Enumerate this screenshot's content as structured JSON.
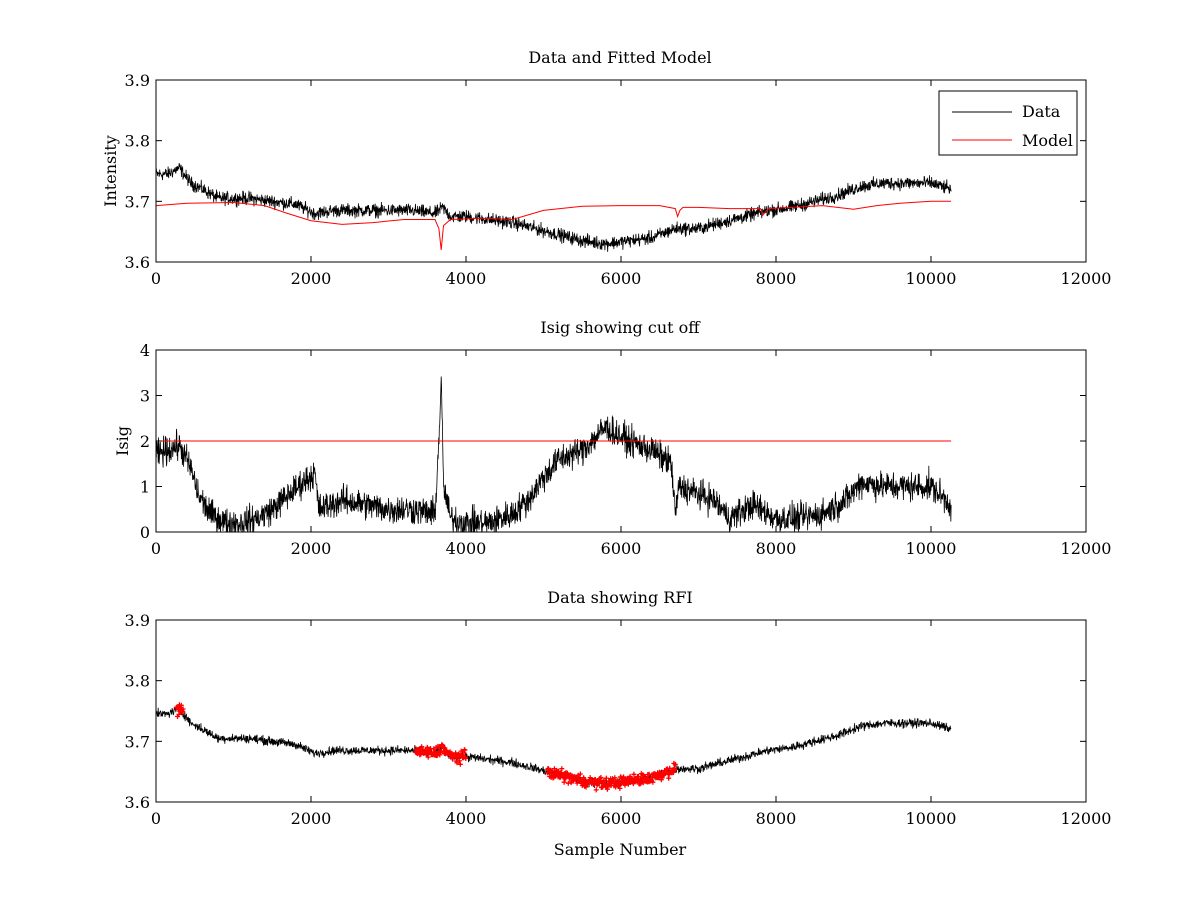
{
  "chart_data": [
    {
      "type": "line",
      "title": "Data and Fitted Model",
      "xlabel": "",
      "ylabel": "Intensity",
      "xlim": [
        0,
        12000
      ],
      "ylim": [
        3.6,
        3.9
      ],
      "xticks": [
        0,
        2000,
        4000,
        6000,
        8000,
        10000,
        12000
      ],
      "yticks": [
        3.6,
        3.7,
        3.8,
        3.9
      ],
      "xtick_labels": [
        "0",
        "2000",
        "4000",
        "6000",
        "8000",
        "10000",
        "12000"
      ],
      "ytick_labels": [
        "3.6",
        "3.7",
        "3.8",
        "3.9"
      ],
      "legend": "top-right",
      "series": [
        {
          "name": "Data",
          "color": "#000000",
          "style": "noisy-line",
          "noise": 0.012,
          "x": [
            0,
            150,
            300,
            450,
            600,
            800,
            1000,
            1200,
            1500,
            1800,
            2050,
            2300,
            2600,
            3000,
            3300,
            3600,
            3700,
            3800,
            4000,
            4300,
            4600,
            4900,
            5200,
            5500,
            5800,
            6100,
            6400,
            6700,
            7000,
            7300,
            7600,
            7900,
            8200,
            8500,
            8800,
            9100,
            9400,
            9700,
            10000,
            10260
          ],
          "y": [
            3.745,
            3.745,
            3.755,
            3.73,
            3.72,
            3.705,
            3.705,
            3.705,
            3.7,
            3.695,
            3.68,
            3.685,
            3.685,
            3.685,
            3.685,
            3.68,
            3.69,
            3.675,
            3.675,
            3.67,
            3.665,
            3.655,
            3.645,
            3.635,
            3.63,
            3.635,
            3.64,
            3.655,
            3.655,
            3.665,
            3.675,
            3.685,
            3.69,
            3.7,
            3.71,
            3.725,
            3.73,
            3.73,
            3.73,
            3.72
          ]
        },
        {
          "name": "Model",
          "color": "#ff0000",
          "style": "line",
          "x": [
            0,
            400,
            1000,
            1400,
            1700,
            2000,
            2400,
            2800,
            3200,
            3600,
            3650,
            3680,
            3710,
            3800,
            4200,
            4600,
            5000,
            5500,
            6000,
            6500,
            6700,
            6730,
            6760,
            6800,
            7000,
            7400,
            7700,
            7800,
            7830,
            7900,
            8200,
            8600,
            9000,
            9300,
            9600,
            10000,
            10260
          ],
          "y": [
            3.693,
            3.697,
            3.698,
            3.693,
            3.68,
            3.668,
            3.662,
            3.665,
            3.67,
            3.67,
            3.655,
            3.62,
            3.66,
            3.67,
            3.672,
            3.67,
            3.685,
            3.692,
            3.693,
            3.693,
            3.688,
            3.675,
            3.685,
            3.69,
            3.69,
            3.688,
            3.688,
            3.688,
            3.677,
            3.688,
            3.69,
            3.693,
            3.687,
            3.693,
            3.697,
            3.7,
            3.7
          ]
        }
      ]
    },
    {
      "type": "line",
      "title": "Isig showing cut off",
      "xlabel": "",
      "ylabel": "Isig",
      "xlim": [
        0,
        12000
      ],
      "ylim": [
        0,
        4
      ],
      "xticks": [
        0,
        2000,
        4000,
        6000,
        8000,
        10000,
        12000
      ],
      "yticks": [
        0,
        1,
        2,
        3,
        4
      ],
      "xtick_labels": [
        "0",
        "2000",
        "4000",
        "6000",
        "8000",
        "10000",
        "12000"
      ],
      "ytick_labels": [
        "0",
        "1",
        "2",
        "3",
        "4"
      ],
      "series": [
        {
          "color": "#000000",
          "style": "noisy-line",
          "noise": 0.35,
          "x": [
            0,
            150,
            300,
            450,
            550,
            700,
            900,
            1100,
            1300,
            1500,
            1700,
            1900,
            2050,
            2100,
            2400,
            2700,
            3000,
            3300,
            3600,
            3650,
            3680,
            3710,
            3800,
            4000,
            4300,
            4600,
            4800,
            5000,
            5200,
            5500,
            5800,
            6100,
            6400,
            6650,
            6700,
            6750,
            6900,
            7200,
            7400,
            7500,
            7700,
            8000,
            8300,
            8600,
            8900,
            9100,
            9400,
            9700,
            10000,
            10260
          ],
          "y": [
            1.7,
            1.8,
            1.9,
            1.4,
            0.8,
            0.4,
            0.2,
            0.2,
            0.3,
            0.5,
            0.8,
            1.1,
            1.3,
            0.5,
            0.7,
            0.6,
            0.5,
            0.5,
            0.4,
            2.0,
            3.4,
            1.0,
            0.3,
            0.2,
            0.2,
            0.4,
            0.7,
            1.2,
            1.6,
            1.8,
            2.3,
            2.0,
            1.8,
            1.5,
            0.4,
            1.0,
            0.9,
            0.7,
            0.3,
            0.4,
            0.6,
            0.3,
            0.3,
            0.4,
            0.7,
            1.1,
            1.0,
            1.0,
            1.0,
            0.6
          ]
        },
        {
          "color": "#ff0000",
          "style": "line",
          "x": [
            0,
            10260
          ],
          "y": [
            2,
            2
          ]
        }
      ]
    },
    {
      "type": "line",
      "title": "Data showing RFI",
      "xlabel": "Sample Number",
      "ylabel": "",
      "xlim": [
        0,
        12000
      ],
      "ylim": [
        3.6,
        3.9
      ],
      "xticks": [
        0,
        2000,
        4000,
        6000,
        8000,
        10000,
        12000
      ],
      "yticks": [
        3.6,
        3.7,
        3.8,
        3.9
      ],
      "xtick_labels": [
        "0",
        "2000",
        "4000",
        "6000",
        "8000",
        "10000",
        "12000"
      ],
      "ytick_labels": [
        "3.6",
        "3.7",
        "3.8",
        "3.9"
      ],
      "series": [
        {
          "color": "#000000",
          "style": "noisy-line",
          "noise": 0.008,
          "x": [
            0,
            150,
            300,
            450,
            600,
            800,
            1000,
            1200,
            1500,
            1800,
            2050,
            2300,
            2600,
            3000,
            3300,
            3600,
            3700,
            3800,
            4000,
            4300,
            4600,
            4900,
            5200,
            5500,
            5800,
            6100,
            6400,
            6700,
            7000,
            7300,
            7600,
            7900,
            8200,
            8500,
            8800,
            9100,
            9400,
            9700,
            10000,
            10260
          ],
          "y": [
            3.745,
            3.745,
            3.755,
            3.73,
            3.72,
            3.705,
            3.705,
            3.705,
            3.7,
            3.695,
            3.68,
            3.685,
            3.685,
            3.685,
            3.685,
            3.68,
            3.69,
            3.675,
            3.675,
            3.67,
            3.665,
            3.655,
            3.645,
            3.635,
            3.63,
            3.635,
            3.64,
            3.655,
            3.655,
            3.665,
            3.675,
            3.685,
            3.69,
            3.7,
            3.71,
            3.725,
            3.73,
            3.73,
            3.73,
            3.72
          ]
        },
        {
          "color": "#ff0000",
          "style": "markers",
          "ranges": [
            [
              260,
              350
            ],
            [
              3350,
              4000
            ],
            [
              5050,
              6700
            ]
          ],
          "noise": 0.01
        }
      ]
    }
  ]
}
